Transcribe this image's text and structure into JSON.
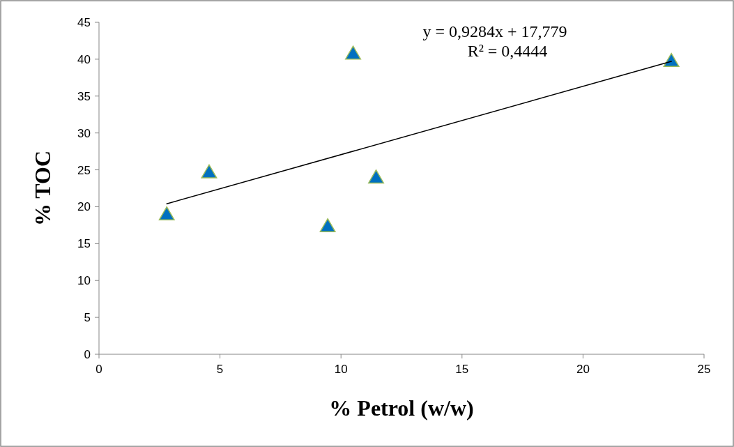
{
  "chart_data": {
    "type": "scatter",
    "xlabel": "% Petrol (w/w)",
    "ylabel": "% TOC",
    "xlim": [
      0,
      25
    ],
    "ylim": [
      0,
      45
    ],
    "xticks": [
      0,
      5,
      10,
      15,
      20,
      25
    ],
    "yticks": [
      0,
      5,
      10,
      15,
      20,
      25,
      30,
      35,
      40,
      45
    ],
    "grid": false,
    "marker": "triangle",
    "series": [
      {
        "color": "#0070c0",
        "x": [
          2.8,
          4.55,
          9.45,
          10.5,
          11.45,
          23.65
        ],
        "values": [
          18.8,
          24.5,
          17.2,
          40.6,
          23.8,
          39.6
        ]
      },
      {
        "type": "line",
        "color": "#000000",
        "x": [
          2.8,
          23.65
        ],
        "values": [
          20.4,
          39.7
        ],
        "marker": "none",
        "line_style": "solid"
      }
    ],
    "annotations": [
      "y = 0,9284x + 17,779",
      "R² = 0,4444"
    ]
  }
}
